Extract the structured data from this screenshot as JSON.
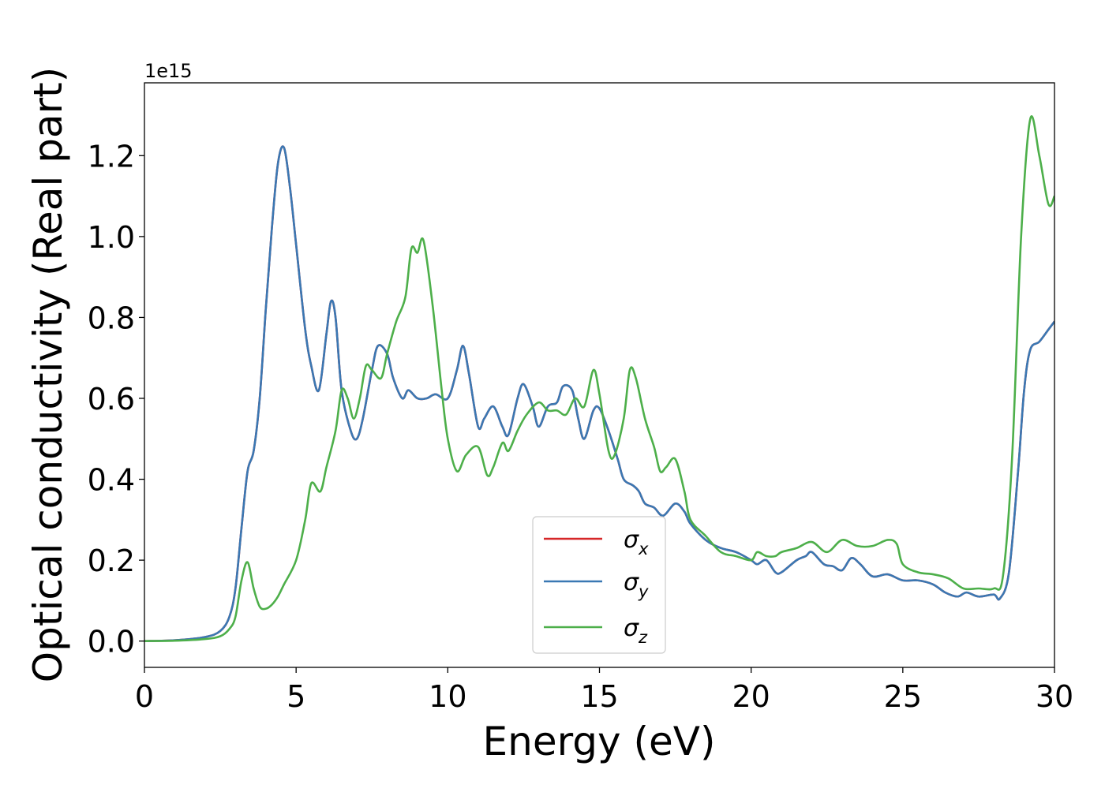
{
  "chart_data": {
    "type": "line",
    "title": "",
    "xlabel": "Energy (eV)",
    "ylabel": "Optical conductivity (Real part)",
    "y_offset_label": "1e15",
    "xlim": [
      0,
      30
    ],
    "ylim": [
      -0.065,
      1.38
    ],
    "x_ticks": [
      0,
      5,
      10,
      15,
      20,
      25,
      30
    ],
    "x_tick_labels": [
      "0",
      "5",
      "10",
      "15",
      "20",
      "25",
      "30"
    ],
    "y_ticks": [
      0.0,
      0.2,
      0.4,
      0.6,
      0.8,
      1.0,
      1.2
    ],
    "y_tick_labels": [
      "0.0",
      "0.2",
      "0.4",
      "0.6",
      "0.8",
      "1.0",
      "1.2"
    ],
    "grid": false,
    "legend_position": "lower-center",
    "series": [
      {
        "name": "σx",
        "legend_symbol": "σ",
        "legend_subscript": "x",
        "color": "#d62728",
        "same_as": "σy"
      },
      {
        "name": "σy",
        "legend_symbol": "σ",
        "legend_subscript": "y",
        "color": "#3a78b3",
        "x": [
          0,
          1.0,
          2.0,
          2.5,
          2.8,
          3.0,
          3.2,
          3.4,
          3.6,
          3.8,
          4.0,
          4.2,
          4.4,
          4.6,
          4.8,
          5.0,
          5.3,
          5.5,
          5.75,
          6.0,
          6.15,
          6.3,
          6.5,
          6.8,
          7.0,
          7.2,
          7.5,
          7.7,
          8.0,
          8.2,
          8.5,
          8.7,
          9.0,
          9.3,
          9.6,
          10.0,
          10.3,
          10.5,
          10.7,
          11.0,
          11.2,
          11.5,
          11.8,
          12.0,
          12.3,
          12.5,
          12.8,
          13.0,
          13.3,
          13.6,
          13.8,
          14.1,
          14.3,
          14.5,
          14.8,
          15.0,
          15.3,
          15.6,
          15.8,
          16.1,
          16.3,
          16.5,
          16.8,
          17.1,
          17.5,
          17.8,
          18.0,
          18.5,
          19.0,
          19.5,
          20.0,
          20.2,
          20.5,
          20.8,
          21.0,
          21.5,
          21.8,
          22.0,
          22.4,
          22.7,
          23.0,
          23.3,
          23.6,
          24.0,
          24.5,
          25.0,
          25.5,
          26.0,
          26.4,
          26.8,
          27.1,
          27.5,
          28.0,
          28.2,
          28.5,
          28.8,
          29.0,
          29.2,
          29.5,
          29.8,
          30.0
        ],
        "values": [
          0.0,
          0.002,
          0.01,
          0.025,
          0.06,
          0.13,
          0.28,
          0.42,
          0.47,
          0.6,
          0.82,
          1.02,
          1.18,
          1.22,
          1.12,
          0.98,
          0.77,
          0.68,
          0.62,
          0.76,
          0.84,
          0.8,
          0.62,
          0.52,
          0.5,
          0.55,
          0.67,
          0.73,
          0.71,
          0.65,
          0.6,
          0.62,
          0.6,
          0.6,
          0.61,
          0.6,
          0.67,
          0.73,
          0.66,
          0.53,
          0.55,
          0.58,
          0.53,
          0.51,
          0.6,
          0.635,
          0.58,
          0.53,
          0.58,
          0.59,
          0.63,
          0.62,
          0.55,
          0.5,
          0.57,
          0.575,
          0.52,
          0.45,
          0.4,
          0.385,
          0.37,
          0.34,
          0.33,
          0.31,
          0.34,
          0.32,
          0.29,
          0.25,
          0.23,
          0.22,
          0.2,
          0.19,
          0.2,
          0.17,
          0.17,
          0.2,
          0.21,
          0.22,
          0.19,
          0.185,
          0.175,
          0.205,
          0.19,
          0.16,
          0.165,
          0.15,
          0.15,
          0.14,
          0.12,
          0.11,
          0.12,
          0.11,
          0.115,
          0.105,
          0.17,
          0.42,
          0.62,
          0.72,
          0.74,
          0.77,
          0.79
        ]
      },
      {
        "name": "σz",
        "legend_symbol": "σ",
        "legend_subscript": "z",
        "color": "#4daf4a",
        "x": [
          0,
          1.0,
          2.0,
          2.5,
          2.8,
          3.0,
          3.2,
          3.4,
          3.6,
          3.8,
          4.0,
          4.2,
          4.4,
          4.6,
          5.0,
          5.3,
          5.5,
          5.8,
          6.0,
          6.3,
          6.5,
          6.7,
          6.9,
          7.1,
          7.3,
          7.5,
          7.8,
          8.0,
          8.3,
          8.6,
          8.8,
          9.0,
          9.2,
          9.5,
          9.8,
          10.0,
          10.3,
          10.6,
          11.0,
          11.3,
          11.5,
          11.8,
          12.0,
          12.3,
          12.6,
          13.0,
          13.3,
          13.6,
          13.9,
          14.2,
          14.5,
          14.8,
          15.0,
          15.3,
          15.5,
          15.8,
          16.0,
          16.2,
          16.5,
          16.8,
          17.0,
          17.2,
          17.5,
          17.8,
          18.0,
          18.5,
          19.0,
          19.5,
          20.0,
          20.2,
          20.5,
          20.8,
          21.0,
          21.5,
          22.0,
          22.5,
          23.0,
          23.5,
          24.0,
          24.5,
          24.8,
          25.0,
          25.5,
          26.0,
          26.5,
          27.0,
          27.5,
          28.0,
          28.3,
          28.6,
          28.9,
          29.2,
          29.5,
          29.8,
          30.0
        ],
        "values": [
          0.0,
          0.001,
          0.005,
          0.012,
          0.03,
          0.06,
          0.15,
          0.195,
          0.13,
          0.085,
          0.08,
          0.09,
          0.11,
          0.14,
          0.2,
          0.3,
          0.39,
          0.37,
          0.43,
          0.52,
          0.62,
          0.6,
          0.55,
          0.6,
          0.68,
          0.67,
          0.65,
          0.71,
          0.79,
          0.85,
          0.97,
          0.96,
          0.99,
          0.83,
          0.62,
          0.5,
          0.42,
          0.46,
          0.48,
          0.41,
          0.43,
          0.49,
          0.47,
          0.52,
          0.56,
          0.59,
          0.57,
          0.57,
          0.56,
          0.6,
          0.58,
          0.67,
          0.61,
          0.47,
          0.46,
          0.55,
          0.67,
          0.65,
          0.55,
          0.48,
          0.42,
          0.43,
          0.45,
          0.37,
          0.3,
          0.26,
          0.22,
          0.21,
          0.2,
          0.22,
          0.21,
          0.21,
          0.22,
          0.23,
          0.245,
          0.22,
          0.25,
          0.235,
          0.235,
          0.25,
          0.24,
          0.19,
          0.17,
          0.165,
          0.155,
          0.13,
          0.13,
          0.13,
          0.16,
          0.45,
          1.0,
          1.29,
          1.2,
          1.08,
          1.1
        ]
      }
    ]
  }
}
